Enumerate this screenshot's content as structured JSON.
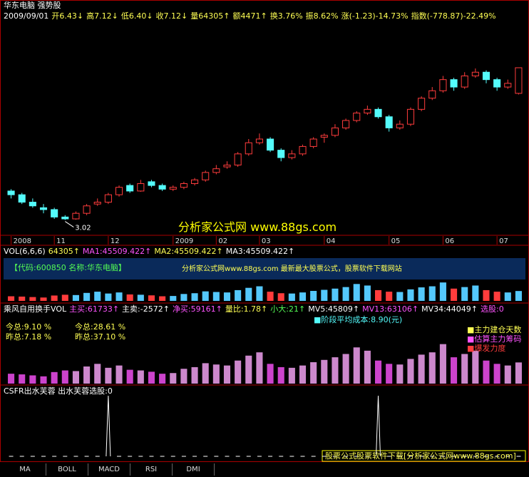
{
  "header": {
    "title": "华东电脑 强势股",
    "info": [
      "2009/09/01",
      "开6.43↓",
      "高7.12↓",
      "低6.40↓",
      "收7.12↓",
      "量64305↑",
      "额4471↑",
      "换3.76%",
      "振8.62%",
      "涨(-1.23)-14.73%",
      "指数(-778.87)-22.49%"
    ]
  },
  "chart_data": {
    "type": "candlestick",
    "up_color": "#ff3c3c",
    "down_color": "#54fcfc",
    "ylim": [
      2.8,
      7.6
    ],
    "categories": [
      "2008",
      null,
      null,
      null,
      "11",
      null,
      null,
      null,
      null,
      "12",
      null,
      null,
      null,
      null,
      null,
      "2009",
      null,
      null,
      null,
      "02",
      null,
      null,
      null,
      "03",
      null,
      null,
      null,
      null,
      null,
      "04",
      null,
      null,
      null,
      null,
      null,
      "05",
      null,
      null,
      null,
      null,
      "06",
      null,
      null,
      null,
      null,
      "07",
      null,
      null
    ],
    "ohlc": [
      [
        3.8,
        3.85,
        3.6,
        3.7
      ],
      [
        3.7,
        3.75,
        3.45,
        3.5
      ],
      [
        3.5,
        3.6,
        3.35,
        3.4
      ],
      [
        3.35,
        3.45,
        3.2,
        3.3
      ],
      [
        3.3,
        3.35,
        3.05,
        3.1
      ],
      [
        3.1,
        3.15,
        3.02,
        3.05
      ],
      [
        3.05,
        3.25,
        3.03,
        3.2
      ],
      [
        3.2,
        3.45,
        3.15,
        3.4
      ],
      [
        3.45,
        3.6,
        3.4,
        3.5
      ],
      [
        3.5,
        3.75,
        3.45,
        3.7
      ],
      [
        3.7,
        3.95,
        3.65,
        3.9
      ],
      [
        3.95,
        4.0,
        3.75,
        3.8
      ],
      [
        3.8,
        4.1,
        3.78,
        4.0
      ],
      [
        4.05,
        4.1,
        3.9,
        3.95
      ],
      [
        3.95,
        4.0,
        3.8,
        3.85
      ],
      [
        3.85,
        3.95,
        3.8,
        3.9
      ],
      [
        3.9,
        4.05,
        3.85,
        4.0
      ],
      [
        4.0,
        4.15,
        3.95,
        4.1
      ],
      [
        4.1,
        4.35,
        4.05,
        4.3
      ],
      [
        4.3,
        4.5,
        4.25,
        4.4
      ],
      [
        4.45,
        4.6,
        4.4,
        4.5
      ],
      [
        4.5,
        4.85,
        4.45,
        4.8
      ],
      [
        4.8,
        5.2,
        4.75,
        5.1
      ],
      [
        5.1,
        5.35,
        5.05,
        5.2
      ],
      [
        5.2,
        5.25,
        4.85,
        4.9
      ],
      [
        4.9,
        4.95,
        4.6,
        4.7
      ],
      [
        4.7,
        4.9,
        4.65,
        4.8
      ],
      [
        4.8,
        5.05,
        4.75,
        5.0
      ],
      [
        5.0,
        5.25,
        4.95,
        5.2
      ],
      [
        5.25,
        5.35,
        5.1,
        5.3
      ],
      [
        5.3,
        5.6,
        5.25,
        5.5
      ],
      [
        5.5,
        5.75,
        5.45,
        5.7
      ],
      [
        5.7,
        5.95,
        5.65,
        5.9
      ],
      [
        5.9,
        6.1,
        5.85,
        6.0
      ],
      [
        6.0,
        6.05,
        5.75,
        5.8
      ],
      [
        5.8,
        5.85,
        5.4,
        5.5
      ],
      [
        5.5,
        5.7,
        5.45,
        5.6
      ],
      [
        5.6,
        6.05,
        5.55,
        6.0
      ],
      [
        6.0,
        6.35,
        5.95,
        6.3
      ],
      [
        6.3,
        6.6,
        6.25,
        6.5
      ],
      [
        6.5,
        6.9,
        6.45,
        6.8
      ],
      [
        6.8,
        6.85,
        6.5,
        6.6
      ],
      [
        6.6,
        7.0,
        6.55,
        6.9
      ],
      [
        6.9,
        7.1,
        6.85,
        7.0
      ],
      [
        7.0,
        7.05,
        6.7,
        6.8
      ],
      [
        6.8,
        6.85,
        6.5,
        6.6
      ],
      [
        6.6,
        6.8,
        6.55,
        6.7
      ],
      [
        6.43,
        7.12,
        6.4,
        7.12
      ]
    ],
    "low_label": "3.02",
    "watermark": "分析家公式网 www.88gs.com",
    "volume": {
      "ylim": [
        0,
        130000
      ],
      "color": "#54c8fc",
      "values": [
        30000,
        28000,
        25000,
        22000,
        35000,
        40000,
        38000,
        52000,
        60000,
        48000,
        55000,
        42000,
        40000,
        36000,
        30000,
        32000,
        45000,
        50000,
        62000,
        58000,
        55000,
        70000,
        85000,
        95000,
        60000,
        50000,
        48000,
        55000,
        65000,
        72000,
        80000,
        90000,
        110000,
        100000,
        70000,
        60000,
        58000,
        75000,
        88000,
        95000,
        120000,
        80000,
        90000,
        100000,
        70000,
        60000,
        55000,
        64305
      ]
    },
    "csfr_signals": [
      0,
      0,
      0,
      0,
      0,
      0,
      0,
      0,
      0,
      1,
      0,
      0,
      0,
      0,
      0,
      0,
      0,
      0,
      0,
      0,
      0,
      0,
      0,
      0,
      0,
      0,
      0,
      0,
      0,
      0,
      0,
      0,
      0,
      0,
      1,
      0,
      0,
      0,
      0,
      0,
      0,
      0,
      0,
      0,
      0,
      0,
      0,
      0
    ]
  },
  "vol_panel": {
    "header": [
      "VOL(6,6,6)",
      "64305↑",
      "MA1:45509.422↑",
      "MA2:45509.422↑",
      "MA3:45509.422↑"
    ],
    "banner_code": "【代码:600850 名称:华东电脑】",
    "banner_site": "分析家公式网www.88gs.com 最新最大股票公式，股票软件下载网站"
  },
  "turnover_panel": {
    "header": [
      "乘风自用换手VOL",
      "主买:61733↑",
      "主卖:-2572↑",
      "净买:59161↑",
      "量比:1.78↑",
      "小大:21↑",
      "MV5:45809↑",
      "MV13:63106↑",
      "MV34:44049↑",
      "选股:0"
    ],
    "left_a": [
      "今总:9.10 %",
      "昨总:7.18 %"
    ],
    "left_b": [
      "今总:28.61 %",
      "昨总:37.10 %"
    ],
    "cost": "阶段平均成本:8.90(元)",
    "legend": [
      "主力建仓天数",
      "估算主力筹码",
      "爆发力度"
    ]
  },
  "csfr_panel": {
    "header": "CSFR出水芙蓉 出水芙蓉选股:0",
    "footer": "股票公式股票软件下载[分析家公式网www.88gs.com]"
  },
  "tabs": [
    "MA",
    "BOLL",
    "MACD",
    "RSI",
    "DMI"
  ]
}
